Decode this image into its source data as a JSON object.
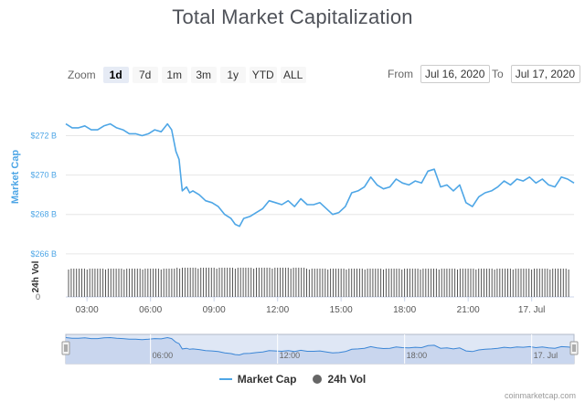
{
  "title": "Total Market Capitalization",
  "zoom": {
    "label": "Zoom",
    "buttons": [
      "1d",
      "7d",
      "1m",
      "3m",
      "1y",
      "YTD",
      "ALL"
    ],
    "active": "1d"
  },
  "range": {
    "from_label": "From",
    "from_value": "Jul 16, 2020",
    "to_label": "To",
    "to_value": "Jul 17, 2020"
  },
  "legend": {
    "market_cap": "Market Cap",
    "vol": "24h Vol"
  },
  "credit": "coinmarketcap.com",
  "colors": {
    "line": "#4ea6e6",
    "volume": "#555555",
    "navigator_fill": "#dfe7f5",
    "axis_label": "#4ea6e6"
  },
  "chart_data": {
    "type": "line",
    "ylabel": "Market Cap",
    "ylabel2": "24h Vol",
    "y_ticks": [
      "$272 B",
      "$270 B",
      "$268 B",
      "$266 B"
    ],
    "y_tick_values": [
      272,
      270,
      268,
      266
    ],
    "vol_tick": "0",
    "x_ticks": [
      "03:00",
      "06:00",
      "09:00",
      "12:00",
      "15:00",
      "18:00",
      "21:00",
      "17. Jul"
    ],
    "x_tick_hours": [
      3,
      6,
      9,
      12,
      15,
      18,
      21,
      24
    ],
    "nav_ticks": [
      "06:00",
      "12:00",
      "18:00",
      "17. Jul"
    ],
    "nav_tick_hours": [
      6,
      12,
      18,
      24
    ],
    "series": [
      {
        "name": "Market Cap",
        "x_hours": [
          2.0,
          2.3,
          2.6,
          2.9,
          3.2,
          3.5,
          3.8,
          4.1,
          4.4,
          4.7,
          5.0,
          5.3,
          5.6,
          5.9,
          6.2,
          6.5,
          6.8,
          7.0,
          7.2,
          7.35,
          7.5,
          7.7,
          7.85,
          8.0,
          8.3,
          8.6,
          8.9,
          9.2,
          9.5,
          9.8,
          10.0,
          10.2,
          10.4,
          10.7,
          11.0,
          11.3,
          11.6,
          11.9,
          12.2,
          12.5,
          12.8,
          13.1,
          13.4,
          13.7,
          14.0,
          14.3,
          14.6,
          14.9,
          15.2,
          15.5,
          15.8,
          16.1,
          16.4,
          16.7,
          17.0,
          17.3,
          17.6,
          17.9,
          18.2,
          18.5,
          18.8,
          19.1,
          19.4,
          19.7,
          20.0,
          20.3,
          20.6,
          20.9,
          21.2,
          21.5,
          21.8,
          22.1,
          22.4,
          22.7,
          23.0,
          23.3,
          23.6,
          23.9,
          24.2,
          24.5,
          24.8,
          25.1,
          25.4,
          25.7,
          26.0
        ],
        "values": [
          272.6,
          272.4,
          272.4,
          272.5,
          272.3,
          272.3,
          272.5,
          272.6,
          272.4,
          272.3,
          272.1,
          272.1,
          272.0,
          272.1,
          272.3,
          272.2,
          272.6,
          272.3,
          271.2,
          270.8,
          269.2,
          269.4,
          269.1,
          269.2,
          269.0,
          268.7,
          268.6,
          268.4,
          268.0,
          267.8,
          267.5,
          267.4,
          267.8,
          267.9,
          268.1,
          268.3,
          268.7,
          268.6,
          268.5,
          268.7,
          268.4,
          268.8,
          268.5,
          268.5,
          268.6,
          268.3,
          268.0,
          268.1,
          268.4,
          269.1,
          269.2,
          269.4,
          269.9,
          269.5,
          269.3,
          269.4,
          269.8,
          269.6,
          269.5,
          269.7,
          269.6,
          270.2,
          270.3,
          269.4,
          269.5,
          269.2,
          269.5,
          268.6,
          268.4,
          268.9,
          269.1,
          269.2,
          269.4,
          269.7,
          269.5,
          269.8,
          269.7,
          269.9,
          269.6,
          269.8,
          269.5,
          269.4,
          269.9,
          269.8,
          269.6
        ]
      },
      {
        "name": "24h Vol",
        "values_note": "volume bars of near-constant height across the period"
      }
    ],
    "ylim": [
      265.9,
      273.0
    ],
    "xlim_hours": [
      2.0,
      26.0
    ],
    "grid": true,
    "legend_position": "bottom"
  }
}
